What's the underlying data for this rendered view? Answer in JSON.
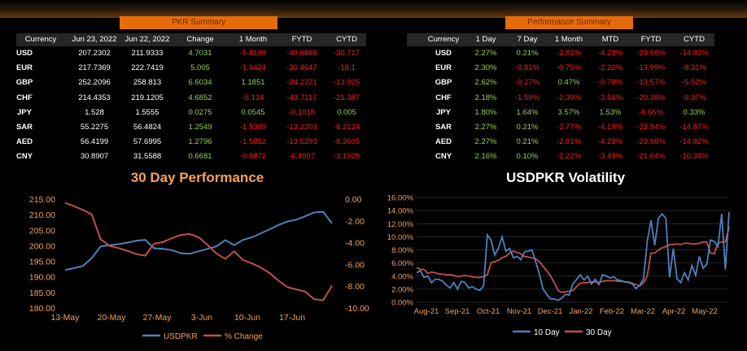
{
  "pkr_summary": {
    "title": "PKR Summary",
    "columns": [
      "Currency",
      "Jun 23, 2022",
      "Jun 22, 2022",
      "Change",
      "1 Month",
      "FYTD",
      "CYTD"
    ],
    "rows": [
      {
        "ccy": "USD",
        "d1": "207.2302",
        "d2": "211.9333",
        "chg": "4.7031",
        "m1": "-5.8196",
        "fytd": "-49.6865",
        "cytd": "-30.717"
      },
      {
        "ccy": "EUR",
        "d1": "217.7369",
        "d2": "222.7419",
        "chg": "5.005",
        "m1": "-1.6434",
        "fytd": "-30.4647",
        "cytd": "-18.1"
      },
      {
        "ccy": "GBP",
        "d1": "252.2096",
        "d2": "258.813",
        "chg": "6.6034",
        "m1": "1.1851",
        "fytd": "-34.2321",
        "cytd": "-13.925"
      },
      {
        "ccy": "CHF",
        "d1": "214.4353",
        "d2": "219.1205",
        "chg": "4.6852",
        "m1": "-5.134",
        "fytd": "-43.7117",
        "cytd": "-21.387"
      },
      {
        "ccy": "JPY",
        "d1": "1.528",
        "d2": "1.5555",
        "chg": "0.0275",
        "m1": "0.0545",
        "fytd": "-0.1018",
        "cytd": "0.005"
      },
      {
        "ccy": "SAR",
        "d1": "55.2275",
        "d2": "56.4824",
        "chg": "1.2549",
        "m1": "-1.5309",
        "fytd": "-13.2203",
        "cytd": "-8.2124"
      },
      {
        "ccy": "AED",
        "d1": "56.4199",
        "d2": "57.6995",
        "chg": "1.2796",
        "m1": "-1.5852",
        "fytd": "-13.5293",
        "cytd": "-8.3635"
      },
      {
        "ccy": "CNY",
        "d1": "30.8907",
        "d2": "31.5588",
        "chg": "0.6681",
        "m1": "-0.6872",
        "fytd": "-6.4997",
        "cytd": "-3.1928"
      }
    ]
  },
  "performance_summary": {
    "title": "Performance Summary",
    "columns": [
      "Currency",
      "1 Day",
      "7 Day",
      "1 Month",
      "MTD",
      "FYTD",
      "CYTD"
    ],
    "rows": [
      {
        "ccy": "USD",
        "d1": "2.27%",
        "d7": "0.21%",
        "m1": "-2.81%",
        "mtd": "-4.23%",
        "fytd": "-23.98%",
        "cytd": "-14.82%"
      },
      {
        "ccy": "EUR",
        "d1": "2.30%",
        "d7": "-0.81%",
        "m1": "-0.75%",
        "mtd": "-2.22%",
        "fytd": "-13.99%",
        "cytd": "-8.31%"
      },
      {
        "ccy": "GBP",
        "d1": "2.62%",
        "d7": "-0.27%",
        "m1": "0.47%",
        "mtd": "-0.78%",
        "fytd": "-13.57%",
        "cytd": "-5.52%"
      },
      {
        "ccy": "CHF",
        "d1": "2.18%",
        "d7": "-1.50%",
        "m1": "-2.39%",
        "mtd": "-3.54%",
        "fytd": "-20.38%",
        "cytd": "-9.97%"
      },
      {
        "ccy": "JPY",
        "d1": "1.80%",
        "d7": "1.64%",
        "m1": "3.57%",
        "mtd": "1.53%",
        "fytd": "-6.66%",
        "cytd": "0.33%"
      },
      {
        "ccy": "SAR",
        "d1": "2.27%",
        "d7": "0.21%",
        "m1": "-2.77%",
        "mtd": "-4.19%",
        "fytd": "-23.94%",
        "cytd": "-14.87%"
      },
      {
        "ccy": "AED",
        "d1": "2.27%",
        "d7": "0.21%",
        "m1": "-2.81%",
        "mtd": "-4.23%",
        "fytd": "-23.98%",
        "cytd": "-14.82%"
      },
      {
        "ccy": "CNY",
        "d1": "2.16%",
        "d7": "0.10%",
        "m1": "-2.22%",
        "mtd": "-3.49%",
        "fytd": "-21.04%",
        "cytd": "-10.34%"
      }
    ]
  },
  "colors": {
    "accent": "#e46c0a",
    "positive": "#92d050",
    "negative": "#ff1a1a",
    "blue": "#4f81bd",
    "red": "#c0504d"
  },
  "chart_data": [
    {
      "type": "line",
      "title": "30 Day Performance",
      "x_ticks": [
        "13-May",
        "20-May",
        "27-May",
        "3-Jun",
        "10-Jun",
        "17-Jun"
      ],
      "y_left": {
        "ylim": [
          180,
          215
        ],
        "ticks": [
          "180.00",
          "185.00",
          "190.00",
          "195.00",
          "200.00",
          "205.00",
          "210.00",
          "215.00"
        ]
      },
      "y_right": {
        "ylim": [
          -10,
          0
        ],
        "ticks": [
          "-10.00",
          "-8.00",
          "-6.00",
          "-4.00",
          "-2.00",
          "0.00"
        ]
      },
      "legend_position": "bottom",
      "series": [
        {
          "name": "USDPKR",
          "axis": "left",
          "color": "#4f81bd",
          "values": [
            192.2,
            192.8,
            193.5,
            196,
            199.8,
            200.2,
            200.5,
            201,
            201.6,
            201.9,
            199.2,
            199,
            198.6,
            197.6,
            197.4,
            198.2,
            199,
            199.8,
            201.8,
            200.2,
            201.9,
            202.7,
            204,
            205.3,
            206.7,
            207.8,
            208.4,
            209.5,
            210.7,
            210.9,
            207.2
          ]
        },
        {
          "name": "% Change",
          "axis": "right",
          "color": "#c0504d",
          "values": [
            -0.35,
            -0.65,
            -1.0,
            -1.4,
            -3.7,
            -4.3,
            -4.5,
            -4.75,
            -5.05,
            -5.2,
            -4.1,
            -3.95,
            -3.6,
            -3.3,
            -3.2,
            -3.5,
            -4.2,
            -5.0,
            -5.5,
            -4.8,
            -5.6,
            -5.9,
            -6.3,
            -6.8,
            -7.5,
            -8.1,
            -8.3,
            -8.5,
            -9.2,
            -9.3,
            -7.95
          ]
        }
      ]
    },
    {
      "type": "line",
      "title": "USDPKR Volatility",
      "x_ticks": [
        "Aug-21",
        "Sep-21",
        "Oct-21",
        "Nov-21",
        "Dec-21",
        "Jan-22",
        "Feb-22",
        "Mar-22",
        "Apr-22",
        "May-22"
      ],
      "ylim": [
        0,
        16
      ],
      "y_ticks": [
        "0.00%",
        "2.00%",
        "4.00%",
        "6.00%",
        "8.00%",
        "10.00%",
        "12.00%",
        "14.00%",
        "16.00%"
      ],
      "legend_position": "bottom",
      "series": [
        {
          "name": "10 Day",
          "color": "#4f81bd",
          "values": [
            4.5,
            4.8,
            3.8,
            4.0,
            3.0,
            3.5,
            3.5,
            3.2,
            2.6,
            2.2,
            3.0,
            2.0,
            3.2,
            3.0,
            2.2,
            2.4,
            2.0,
            1.8,
            2.5,
            10.3,
            9.5,
            7.2,
            8.3,
            10.0,
            7.8,
            8.2,
            6.8,
            7.0,
            6.5,
            7.7,
            7.8,
            8.0,
            6.2,
            4.3,
            2.0,
            1.2,
            0.5,
            0.5,
            0.3,
            0.6,
            1.2,
            1.1,
            2.8,
            3.5,
            4.2,
            3.4,
            4.0,
            2.8,
            3.5,
            2.7,
            4.2,
            4.0,
            3.7,
            3.9,
            3.4,
            3.3,
            3.1,
            3.0,
            2.8,
            2.1,
            2.6,
            3.6,
            9.3,
            12.5,
            8.7,
            12.8,
            13.5,
            12.8,
            3.8,
            8.2,
            3.6,
            3.0,
            4.5,
            3.4,
            5.6,
            4.1,
            7.0,
            5.2,
            5.8,
            9.5,
            9.3,
            8.5,
            13.5,
            5.0,
            13.8
          ]
        },
        {
          "name": "30 Day",
          "color": "#c0504d",
          "values": [
            5.3,
            5.0,
            5.0,
            4.4,
            4.6,
            4.5,
            4.3,
            4.3,
            4.2,
            4.2,
            4.1,
            3.9,
            4.0,
            4.1,
            4.0,
            3.9,
            3.8,
            3.8,
            3.9,
            4.2,
            6.0,
            6.2,
            6.4,
            6.8,
            7.0,
            7.5,
            7.8,
            7.6,
            7.4,
            7.0,
            6.9,
            6.8,
            6.6,
            6.2,
            5.5,
            4.8,
            4.0,
            3.0,
            1.8,
            1.5,
            1.6,
            1.7,
            1.8,
            2.4,
            2.9,
            3.0,
            3.0,
            3.1,
            3.1,
            3.0,
            3.2,
            3.3,
            3.3,
            3.3,
            3.2,
            3.2,
            3.1,
            3.1,
            2.9,
            2.7,
            2.5,
            3.0,
            4.0,
            7.5,
            7.5,
            8.0,
            8.3,
            8.5,
            8.8,
            8.8,
            8.9,
            8.8,
            9.0,
            9.0,
            8.9,
            8.9,
            9.0,
            9.2,
            9.2,
            7.5,
            7.4,
            9.0,
            9.2,
            9.2,
            11.5
          ]
        }
      ]
    }
  ]
}
